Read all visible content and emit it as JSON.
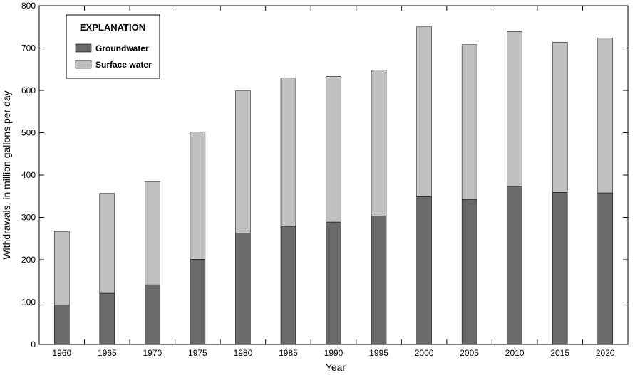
{
  "chart_data": {
    "type": "bar",
    "stacked": true,
    "categories": [
      "1960",
      "1965",
      "1970",
      "1975",
      "1980",
      "1985",
      "1990",
      "1995",
      "2000",
      "2005",
      "2010",
      "2015",
      "2020"
    ],
    "series": [
      {
        "name": "Groundwater",
        "color": "#696969",
        "values": [
          93,
          121,
          141,
          201,
          263,
          278,
          289,
          303,
          349,
          342,
          372,
          359,
          358
        ]
      },
      {
        "name": "Surface water",
        "color": "#c0c0c0",
        "values": [
          174,
          236,
          243,
          301,
          336,
          351,
          344,
          345,
          401,
          366,
          367,
          355,
          366
        ]
      }
    ],
    "xlabel": "Year",
    "ylabel": "Withdrawals, in million gallons per day",
    "ylim": [
      0,
      800
    ],
    "yticks": [
      0,
      100,
      200,
      300,
      400,
      500,
      600,
      700,
      800
    ],
    "grid": false,
    "legend": {
      "title": "EXPLANATION",
      "placement": "top-left"
    }
  }
}
